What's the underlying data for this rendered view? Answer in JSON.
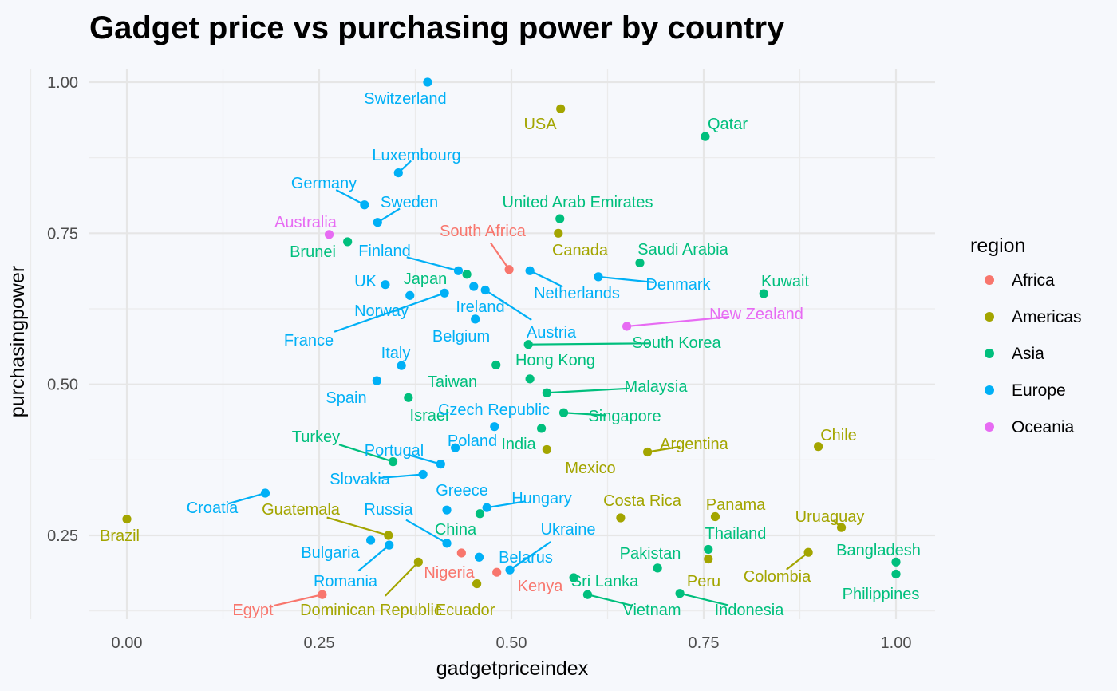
{
  "chart_data": {
    "type": "scatter",
    "title": "Gadget price vs purchasing power by country",
    "xlabel": "gadgetpriceindex",
    "ylabel": "purchasingpower",
    "xlim": [
      -0.1,
      1.05
    ],
    "ylim": [
      0.12,
      1.04
    ],
    "x_ticks": [
      "0.00",
      "0.25",
      "0.50",
      "0.75",
      "1.00"
    ],
    "y_ticks": [
      "0.25",
      "0.50",
      "0.75",
      "1.00"
    ],
    "grid": true,
    "legend": {
      "title": "region",
      "position": "right",
      "items": [
        {
          "name": "Africa",
          "color": "#F8766D"
        },
        {
          "name": "Americas",
          "color": "#A3A500"
        },
        {
          "name": "Asia",
          "color": "#00BF7D"
        },
        {
          "name": "Europe",
          "color": "#00B0F6"
        },
        {
          "name": "Oceania",
          "color": "#E76BF3"
        }
      ]
    },
    "points": [
      {
        "label": "Switzerland",
        "region": "Europe",
        "x": 0.391,
        "y": 1.0
      },
      {
        "label": "USA",
        "region": "Americas",
        "x": 0.564,
        "y": 0.956
      },
      {
        "label": "Qatar",
        "region": "Asia",
        "x": 0.752,
        "y": 0.91
      },
      {
        "label": "Luxembourg",
        "region": "Europe",
        "x": 0.353,
        "y": 0.85
      },
      {
        "label": "Germany",
        "region": "Europe",
        "x": 0.309,
        "y": 0.797
      },
      {
        "label": "Sweden",
        "region": "Europe",
        "x": 0.326,
        "y": 0.768
      },
      {
        "label": "United Arab Emirates",
        "region": "Asia",
        "x": 0.563,
        "y": 0.774
      },
      {
        "label": "Australia",
        "region": "Oceania",
        "x": 0.263,
        "y": 0.748
      },
      {
        "label": "South Africa",
        "region": "Africa",
        "x": 0.497,
        "y": 0.69
      },
      {
        "label": "Canada",
        "region": "Americas",
        "x": 0.561,
        "y": 0.75
      },
      {
        "label": "Brunei",
        "region": "Asia",
        "x": 0.287,
        "y": 0.736
      },
      {
        "label": "Saudi Arabia",
        "region": "Asia",
        "x": 0.667,
        "y": 0.701
      },
      {
        "label": "Finland",
        "region": "Europe",
        "x": 0.431,
        "y": 0.688
      },
      {
        "label": "Japan",
        "region": "Asia",
        "x": 0.442,
        "y": 0.682
      },
      {
        "label": "Netherlands",
        "region": "Europe",
        "x": 0.524,
        "y": 0.688
      },
      {
        "label": "Denmark",
        "region": "Europe",
        "x": 0.613,
        "y": 0.678
      },
      {
        "label": "Kuwait",
        "region": "Asia",
        "x": 0.828,
        "y": 0.65
      },
      {
        "label": "UK",
        "region": "Europe",
        "x": 0.336,
        "y": 0.665
      },
      {
        "label": "Ireland",
        "region": "Europe",
        "x": 0.451,
        "y": 0.662
      },
      {
        "label": "Austria",
        "region": "Europe",
        "x": 0.466,
        "y": 0.656
      },
      {
        "label": "France",
        "region": "Europe",
        "x": 0.413,
        "y": 0.651
      },
      {
        "label": "Norway",
        "region": "Europe",
        "x": 0.368,
        "y": 0.647
      },
      {
        "label": "New Zealand",
        "region": "Oceania",
        "x": 0.65,
        "y": 0.596
      },
      {
        "label": "Belgium",
        "region": "Europe",
        "x": 0.453,
        "y": 0.608
      },
      {
        "label": "South Korea",
        "region": "Asia",
        "x": 0.522,
        "y": 0.566
      },
      {
        "label": "Italy",
        "region": "Europe",
        "x": 0.357,
        "y": 0.531
      },
      {
        "label": "Hong Kong",
        "region": "Asia",
        "x": 0.48,
        "y": 0.532
      },
      {
        "label": "Taiwan",
        "region": "Asia",
        "x": 0.524,
        "y": 0.509
      },
      {
        "label": "Malaysia",
        "region": "Asia",
        "x": 0.546,
        "y": 0.486
      },
      {
        "label": "Spain",
        "region": "Europe",
        "x": 0.325,
        "y": 0.506
      },
      {
        "label": "Israel",
        "region": "Asia",
        "x": 0.366,
        "y": 0.478
      },
      {
        "label": "Singapore",
        "region": "Asia",
        "x": 0.568,
        "y": 0.453
      },
      {
        "label": "Czech Republic",
        "region": "Europe",
        "x": 0.478,
        "y": 0.43
      },
      {
        "label": "India",
        "region": "Asia",
        "x": 0.539,
        "y": 0.427
      },
      {
        "label": "Chile",
        "region": "Americas",
        "x": 0.899,
        "y": 0.397
      },
      {
        "label": "Argentina",
        "region": "Americas",
        "x": 0.677,
        "y": 0.388
      },
      {
        "label": "Mexico",
        "region": "Americas",
        "x": 0.546,
        "y": 0.392
      },
      {
        "label": "Poland",
        "region": "Europe",
        "x": 0.427,
        "y": 0.395
      },
      {
        "label": "Turkey",
        "region": "Asia",
        "x": 0.346,
        "y": 0.372
      },
      {
        "label": "Portugal",
        "region": "Europe",
        "x": 0.408,
        "y": 0.368
      },
      {
        "label": "Slovakia",
        "region": "Europe",
        "x": 0.385,
        "y": 0.351
      },
      {
        "label": "Croatia",
        "region": "Europe",
        "x": 0.18,
        "y": 0.32
      },
      {
        "label": "Hungary",
        "region": "Europe",
        "x": 0.468,
        "y": 0.296
      },
      {
        "label": "Greece",
        "region": "Europe",
        "x": 0.416,
        "y": 0.292
      },
      {
        "label": "Costa Rica",
        "region": "Americas",
        "x": 0.642,
        "y": 0.279
      },
      {
        "label": "Panama",
        "region": "Americas",
        "x": 0.765,
        "y": 0.281
      },
      {
        "label": "Uruaguay",
        "region": "Americas",
        "x": 0.929,
        "y": 0.263
      },
      {
        "label": "Brazil",
        "region": "Americas",
        "x": 0.0,
        "y": 0.277
      },
      {
        "label": "Guatemala",
        "region": "Americas",
        "x": 0.34,
        "y": 0.25
      },
      {
        "label": "Russia",
        "region": "Europe",
        "x": 0.416,
        "y": 0.237
      },
      {
        "label": "China",
        "region": "Asia",
        "x": 0.459,
        "y": 0.286
      },
      {
        "label": "Thailand",
        "region": "Asia",
        "x": 0.756,
        "y": 0.227
      },
      {
        "label": "Bangladesh",
        "region": "Asia",
        "x": 1.0,
        "y": 0.206
      },
      {
        "label": "Colombia",
        "region": "Americas",
        "x": 0.886,
        "y": 0.222
      },
      {
        "label": "Pakistan",
        "region": "Asia",
        "x": 0.69,
        "y": 0.196
      },
      {
        "label": "Peru",
        "region": "Americas",
        "x": 0.756,
        "y": 0.211
      },
      {
        "label": "Philippines",
        "region": "Asia",
        "x": 1.0,
        "y": 0.186
      },
      {
        "label": "Bulgaria",
        "region": "Europe",
        "x": 0.317,
        "y": 0.242
      },
      {
        "label": "Romania",
        "region": "Europe",
        "x": 0.341,
        "y": 0.234
      },
      {
        "label": "Ukraine",
        "region": "Europe",
        "x": 0.498,
        "y": 0.193
      },
      {
        "label": "Belarus",
        "region": "Europe",
        "x": 0.458,
        "y": 0.214
      },
      {
        "label": "Nigeria",
        "region": "Africa",
        "x": 0.435,
        "y": 0.221
      },
      {
        "label": "Kenya",
        "region": "Africa",
        "x": 0.481,
        "y": 0.189
      },
      {
        "label": "Sri Lanka",
        "region": "Asia",
        "x": 0.581,
        "y": 0.18
      },
      {
        "label": "Vietnam",
        "region": "Asia",
        "x": 0.599,
        "y": 0.152
      },
      {
        "label": "Indonesia",
        "region": "Asia",
        "x": 0.719,
        "y": 0.154
      },
      {
        "label": "Egypt",
        "region": "Africa",
        "x": 0.254,
        "y": 0.152
      },
      {
        "label": "Dominican Republic",
        "region": "Americas",
        "x": 0.379,
        "y": 0.206
      },
      {
        "label": "Ecuador",
        "region": "Americas",
        "x": 0.455,
        "y": 0.17
      }
    ]
  }
}
